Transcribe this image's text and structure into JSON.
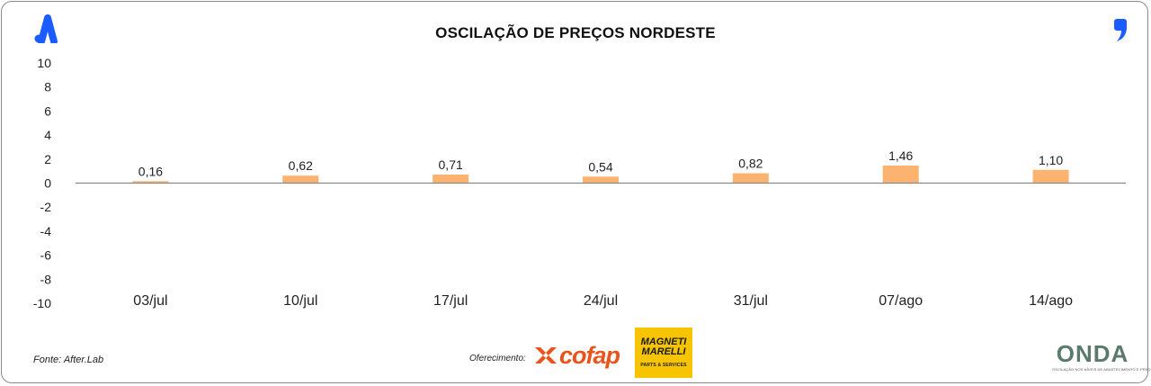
{
  "header": {
    "title": "OSCILAÇÃO DE PREÇOS NORDESTE",
    "left_logo_icon": "a-logo-icon",
    "right_logo_icon": "quote-mark-icon",
    "logo_color": "#1a5cff"
  },
  "chart_data": {
    "type": "bar",
    "title": "OSCILAÇÃO DE PREÇOS NORDESTE",
    "categories": [
      "03/jul",
      "10/jul",
      "17/jul",
      "24/jul",
      "31/jul",
      "07/ago",
      "14/ago"
    ],
    "values": [
      0.16,
      0.62,
      0.71,
      0.54,
      0.82,
      1.46,
      1.1
    ],
    "data_labels": [
      "0,16",
      "0,62",
      "0,71",
      "0,54",
      "0,82",
      "1,46",
      "1,10"
    ],
    "ylim": [
      -10,
      10
    ],
    "yticks": [
      10,
      8,
      6,
      4,
      2,
      0,
      -2,
      -4,
      -6,
      -8,
      -10
    ],
    "ytick_labels": [
      "10",
      "8",
      "6",
      "4",
      "2",
      "0",
      "-2",
      "-4",
      "-6",
      "-8",
      "-10"
    ],
    "xlabel": "",
    "ylabel": "",
    "grid": false,
    "legend": "none",
    "bar_color": "#fbb36f",
    "axis_color": "#8a8a8a"
  },
  "footer": {
    "source": "Fonte: After.Lab",
    "sponsor_label": "Oferecimento:",
    "sponsor_cofap": "cofap",
    "sponsor_magneti_name": "MAGNETI MARELLI",
    "sponsor_magneti_sub": "PARTS & SERVICES",
    "brand_onda": "ONDA",
    "brand_onda_sub": "OSCILAÇÃO NOS NÍVEIS DE ABASTECIMENTO E PREÇOS"
  }
}
